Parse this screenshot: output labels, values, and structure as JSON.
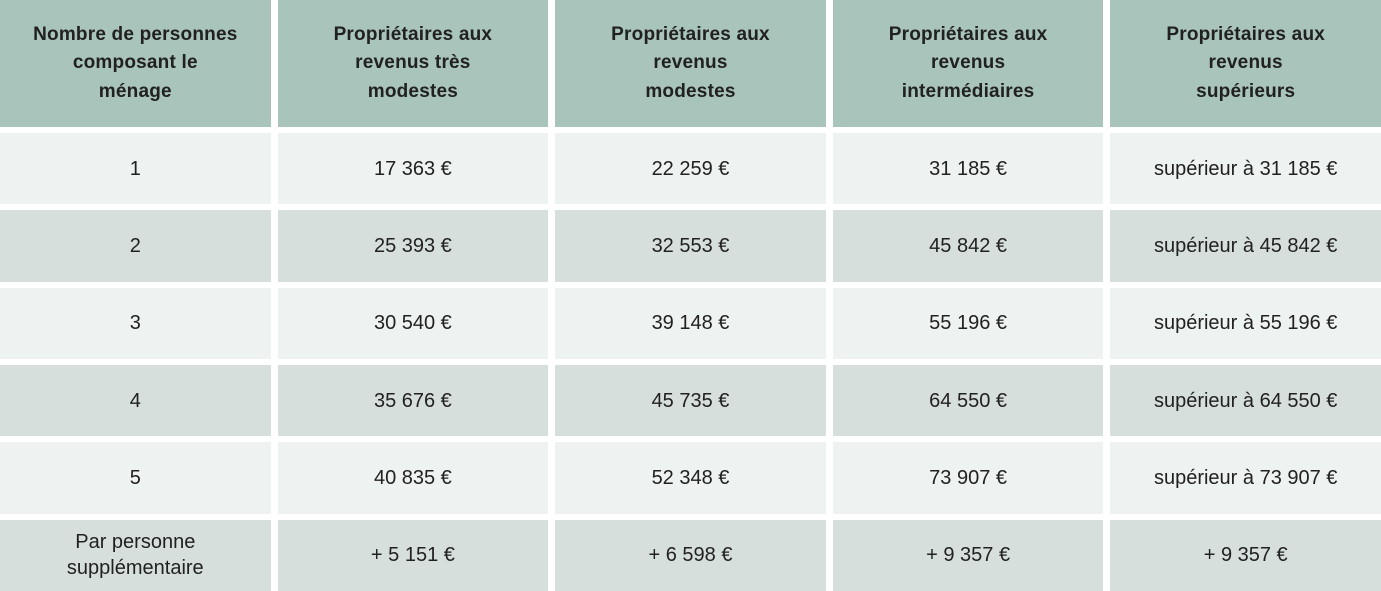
{
  "colors": {
    "header_bg": "#a9c4bb",
    "row_light_bg": "#eef2f1",
    "row_dark_bg": "#d7dfdc",
    "text": "#212121",
    "gap": "#ffffff"
  },
  "table": {
    "headers": [
      "Nombre de personnes\ncomposant le\nménage",
      "Propriétaires aux\nrevenus très\nmodestes",
      "Propriétaires aux\nrevenus\nmodestes",
      "Propriétaires aux\nrevenus\nintermédiaires",
      "Propriétaires aux\nrevenus\nsupérieurs"
    ],
    "rows": [
      {
        "label": "1",
        "values": [
          "17 363 €",
          "22 259 €",
          "31 185 €",
          "supérieur à 31 185 €"
        ]
      },
      {
        "label": "2",
        "values": [
          "25 393 €",
          "32 553 €",
          "45 842 €",
          "supérieur à 45 842 €"
        ]
      },
      {
        "label": "3",
        "values": [
          "30 540 €",
          "39 148 €",
          "55 196 €",
          "supérieur à 55 196 €"
        ]
      },
      {
        "label": "4",
        "values": [
          "35 676 €",
          "45 735 €",
          "64 550 €",
          "supérieur à 64 550 €"
        ]
      },
      {
        "label": "5",
        "values": [
          "40 835 €",
          "52 348 €",
          "73 907 €",
          "supérieur à 73 907 €"
        ]
      },
      {
        "label": "Par personne\nsupplémentaire",
        "values": [
          "+ 5 151 €",
          "+ 6 598 €",
          "+ 9 357 €",
          "+ 9 357 €"
        ]
      }
    ]
  },
  "chart_data": {
    "type": "table",
    "columns": [
      "Nombre de personnes composant le ménage",
      "Propriétaires aux revenus très modestes",
      "Propriétaires aux revenus modestes",
      "Propriétaires aux revenus intermédiaires",
      "Propriétaires aux revenus supérieurs"
    ],
    "rows": [
      [
        "1",
        "17 363 €",
        "22 259 €",
        "31 185 €",
        "supérieur à 31 185 €"
      ],
      [
        "2",
        "25 393 €",
        "32 553 €",
        "45 842 €",
        "supérieur à 45 842 €"
      ],
      [
        "3",
        "30 540 €",
        "39 148 €",
        "55 196 €",
        "supérieur à 55 196 €"
      ],
      [
        "4",
        "35 676 €",
        "45 735 €",
        "64 550 €",
        "supérieur à 64 550 €"
      ],
      [
        "5",
        "40 835 €",
        "52 348 €",
        "73 907 €",
        "supérieur à 73 907 €"
      ],
      [
        "Par personne supplémentaire",
        "+ 5 151 €",
        "+ 6 598 €",
        "+ 9 357 €",
        "+ 9 357 €"
      ]
    ]
  }
}
